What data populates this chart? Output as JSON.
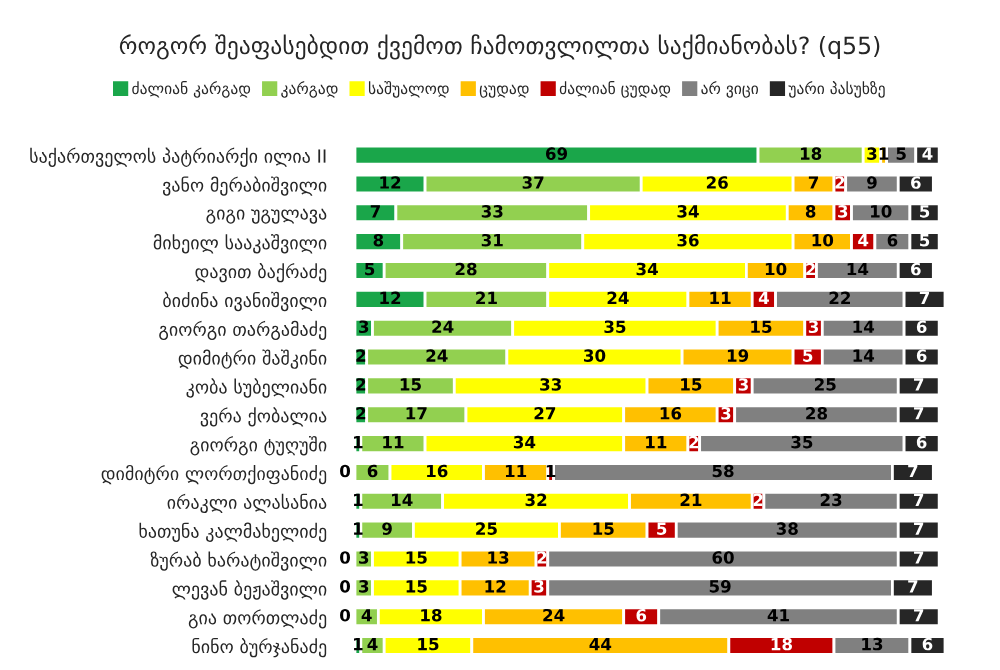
{
  "chart_data": {
    "type": "bar",
    "orientation": "horizontal",
    "stacked": true,
    "data_labels": true,
    "legend": "top",
    "grid": false,
    "title": "როგორ შეაფასებდით ქვემოთ ჩამოთვლილთა საქმიანობას? (q55)",
    "categories": [
      "საქართველოს პატრიარქი ილია II",
      "ვანო მერაბიშვილი",
      "გიგი უგულავა",
      "მიხეილ სააკაშვილი",
      "დავით ბაქრაძე",
      "ბიძინა ივანიშვილი",
      "გიორგი თარგამაძე",
      "დიმიტრი შაშკინი",
      "კობა სუბელიანი",
      "ვერა ქობალია",
      "გიორგი ტუღუში",
      "დიმიტრი ლორთქიფანიძე",
      "ირაკლი ალასანია",
      "ხათუნა კალმახელიძე",
      "ზურაბ ხარატიშვილი",
      "ლევან ბეჟაშვილი",
      "გია თორთლაძე",
      "ნინო ბურჯანაძე"
    ],
    "series": [
      {
        "name": "ძალიან კარგად",
        "color": "#1aa64a",
        "values": [
          69,
          12,
          7,
          8,
          5,
          12,
          3,
          2,
          2,
          2,
          1,
          0,
          1,
          1,
          0,
          0,
          0,
          1
        ]
      },
      {
        "name": "კარგად",
        "color": "#92d050",
        "values": [
          18,
          37,
          33,
          31,
          28,
          21,
          24,
          24,
          15,
          17,
          11,
          6,
          14,
          9,
          3,
          3,
          4,
          4
        ]
      },
      {
        "name": "საშუალოდ",
        "color": "#ffff00",
        "values": [
          3,
          26,
          34,
          36,
          34,
          24,
          35,
          30,
          33,
          27,
          34,
          16,
          32,
          25,
          15,
          15,
          18,
          15
        ]
      },
      {
        "name": "ცუდად",
        "color": "#ffc000",
        "values": [
          1,
          7,
          8,
          10,
          10,
          11,
          15,
          19,
          15,
          16,
          11,
          11,
          21,
          15,
          13,
          12,
          24,
          44
        ]
      },
      {
        "name": "ძალიან ცუდად",
        "color": "#c00000",
        "values": [
          null,
          2,
          3,
          4,
          2,
          4,
          3,
          5,
          3,
          3,
          2,
          1,
          2,
          5,
          2,
          3,
          6,
          18
        ]
      },
      {
        "name": "არ ვიცი",
        "color": "#808080",
        "values": [
          5,
          9,
          10,
          6,
          14,
          22,
          14,
          14,
          25,
          28,
          35,
          58,
          23,
          38,
          60,
          59,
          41,
          13
        ]
      },
      {
        "name": "უარი პასუხზე",
        "color": "#262626",
        "values": [
          4,
          6,
          5,
          5,
          6,
          7,
          6,
          6,
          7,
          7,
          6,
          7,
          7,
          7,
          7,
          7,
          7,
          6
        ]
      }
    ]
  }
}
